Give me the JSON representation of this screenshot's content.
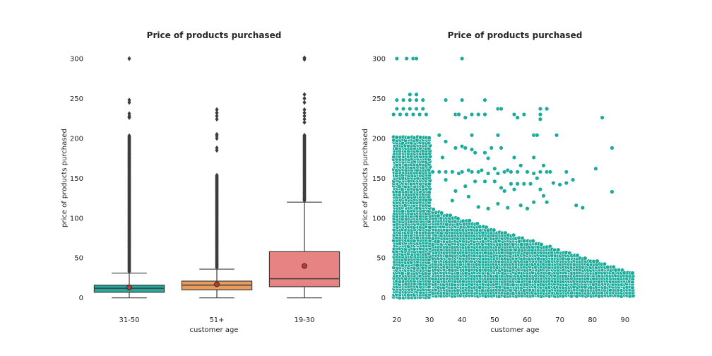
{
  "chart_data": [
    {
      "type": "box",
      "title": "Price of products purchased",
      "xlabel": "customer age",
      "ylabel": "price of products purchased",
      "ylim": [
        -10,
        315
      ],
      "yticks": [
        0,
        50,
        100,
        150,
        200,
        250,
        300
      ],
      "grid": false,
      "categories": [
        "31-50",
        "51+",
        "19-30"
      ],
      "boxes": [
        {
          "name": "31-50",
          "color": "#26a89b",
          "min": 0,
          "q1": 7,
          "median": 12,
          "q3": 16,
          "whisker_high": 31,
          "mean": 13,
          "outliers_range": [
            33,
            204
          ],
          "outliers_extra": [
            226,
            228,
            231,
            245,
            248,
            300
          ]
        },
        {
          "name": "51+",
          "color": "#e89b5c",
          "min": 0,
          "q1": 10,
          "median": 16,
          "q3": 21,
          "whisker_high": 36,
          "mean": 17,
          "outliers_range": [
            38,
            155
          ],
          "outliers_extra": [
            185,
            188,
            200,
            203,
            205,
            224,
            228,
            232,
            236
          ]
        },
        {
          "name": "19-30",
          "color": "#e88383",
          "min": 0,
          "q1": 14,
          "median": 24,
          "q3": 58,
          "whisker_high": 120,
          "mean": 40,
          "outliers_range": [
            122,
            204
          ],
          "outliers_extra": [
            220,
            224,
            228,
            232,
            236,
            245,
            250,
            255,
            299,
            301
          ]
        }
      ]
    },
    {
      "type": "scatter",
      "title": "Price of products purchased",
      "xlabel": "customer age",
      "ylabel": "price of products purchased",
      "xlim": [
        17,
        95
      ],
      "ylim": [
        -10,
        315
      ],
      "xticks": [
        20,
        30,
        40,
        50,
        60,
        70,
        80,
        90
      ],
      "yticks": [
        0,
        50,
        100,
        150,
        200,
        250,
        300
      ],
      "grid": false,
      "color": "#1aab9b",
      "points": [
        [
          20,
          300
        ],
        [
          23,
          300
        ],
        [
          25,
          300
        ],
        [
          26,
          300
        ],
        [
          40,
          300
        ],
        [
          24,
          255
        ],
        [
          26,
          255
        ],
        [
          20,
          248
        ],
        [
          22,
          248
        ],
        [
          24,
          248
        ],
        [
          26,
          248
        ],
        [
          28,
          248
        ],
        [
          35,
          248
        ],
        [
          40,
          248
        ],
        [
          47,
          248
        ],
        [
          20,
          237
        ],
        [
          22,
          237
        ],
        [
          24,
          237
        ],
        [
          26,
          237
        ],
        [
          28,
          237
        ],
        [
          51,
          237
        ],
        [
          52,
          237
        ],
        [
          64,
          237
        ],
        [
          66,
          237
        ],
        [
          19,
          230
        ],
        [
          21,
          230
        ],
        [
          23,
          230
        ],
        [
          25,
          230
        ],
        [
          27,
          230
        ],
        [
          29,
          230
        ],
        [
          38,
          230
        ],
        [
          39,
          230
        ],
        [
          43,
          230
        ],
        [
          45,
          230
        ],
        [
          47,
          230
        ],
        [
          56,
          230
        ],
        [
          59,
          230
        ],
        [
          64,
          230
        ],
        [
          41,
          226
        ],
        [
          57,
          226
        ],
        [
          64,
          224
        ],
        [
          83,
          226
        ],
        [
          33,
          204
        ],
        [
          43,
          204
        ],
        [
          51,
          204
        ],
        [
          62,
          204
        ],
        [
          63,
          204
        ],
        [
          69,
          204
        ],
        [
          35,
          196
        ],
        [
          40,
          190
        ],
        [
          41,
          188
        ],
        [
          43,
          186
        ],
        [
          38,
          188
        ],
        [
          49,
          188
        ],
        [
          52,
          188
        ],
        [
          86,
          188
        ],
        [
          34,
          176
        ],
        [
          44,
          182
        ],
        [
          47,
          182
        ],
        [
          48,
          175
        ],
        [
          56,
          176
        ],
        [
          62,
          176
        ],
        [
          31,
          158
        ],
        [
          33,
          158
        ],
        [
          35,
          158
        ],
        [
          37,
          158
        ],
        [
          39,
          156
        ],
        [
          40,
          158
        ],
        [
          42,
          160
        ],
        [
          43,
          158
        ],
        [
          45,
          158
        ],
        [
          46,
          160
        ],
        [
          48,
          156
        ],
        [
          50,
          162
        ],
        [
          51,
          156
        ],
        [
          53,
          158
        ],
        [
          54,
          160
        ],
        [
          55,
          158
        ],
        [
          57,
          158
        ],
        [
          58,
          166
        ],
        [
          60,
          158
        ],
        [
          62,
          156
        ],
        [
          64,
          158
        ],
        [
          65,
          166
        ],
        [
          66,
          158
        ],
        [
          67,
          158
        ],
        [
          72,
          158
        ],
        [
          81,
          162
        ],
        [
          35,
          148
        ],
        [
          38,
          134
        ],
        [
          41,
          140
        ],
        [
          44,
          146
        ],
        [
          47,
          146
        ],
        [
          50,
          146
        ],
        [
          52,
          138
        ],
        [
          53,
          134
        ],
        [
          55,
          143
        ],
        [
          56,
          136
        ],
        [
          57,
          143
        ],
        [
          59,
          143
        ],
        [
          61,
          143
        ],
        [
          63,
          150
        ],
        [
          64,
          136
        ],
        [
          65,
          128
        ],
        [
          66,
          120
        ],
        [
          68,
          144
        ],
        [
          70,
          142
        ],
        [
          72,
          144
        ],
        [
          74,
          148
        ],
        [
          86,
          133
        ],
        [
          37,
          122
        ],
        [
          42,
          127
        ],
        [
          45,
          114
        ],
        [
          48,
          112
        ],
        [
          51,
          118
        ],
        [
          54,
          113
        ],
        [
          58,
          116
        ],
        [
          60,
          112
        ],
        [
          62,
          120
        ],
        [
          75,
          116
        ],
        [
          77,
          113
        ]
      ],
      "dense_region": {
        "x_range": [
          19,
          30
        ],
        "y_range": [
          0,
          204
        ],
        "note": "dense band of points for ages 19-30"
      },
      "decaying_band": {
        "x_range": [
          31,
          93
        ],
        "y_top_at_start": 110,
        "y_top_at_end": 30
      }
    }
  ]
}
